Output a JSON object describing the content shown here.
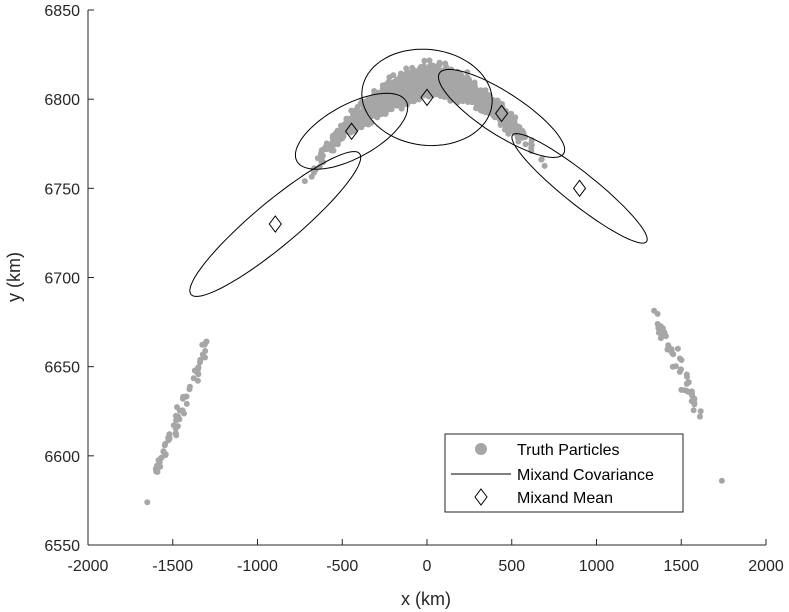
{
  "chart_data": {
    "type": "scatter",
    "xlabel": "x (km)",
    "ylabel": "y (km)",
    "xlim": [
      -2000,
      2000
    ],
    "ylim": [
      6550,
      6850
    ],
    "xticks": [
      -2000,
      -1500,
      -1000,
      -500,
      0,
      500,
      1000,
      1500,
      2000
    ],
    "yticks": [
      6550,
      6600,
      6650,
      6700,
      6750,
      6800,
      6850
    ],
    "grid": false,
    "legend_position": "bottom-right",
    "colors": {
      "particles": "#a6a6a6",
      "lines": "#000000",
      "axes": "#262626"
    },
    "legend": [
      {
        "label": "Truth Particles",
        "marker": "filled-circle"
      },
      {
        "label": "Mixand Covariance",
        "marker": "line"
      },
      {
        "label": "Mixand Mean",
        "marker": "diamond"
      }
    ],
    "particle_arc": {
      "description_points": [
        [
          -1650,
          6575
        ],
        [
          -1600,
          6592
        ],
        [
          -1500,
          6614
        ],
        [
          -1400,
          6638
        ],
        [
          -1300,
          6660
        ],
        [
          -1200,
          6683
        ],
        [
          -1100,
          6700
        ],
        [
          -1000,
          6714
        ],
        [
          -900,
          6730
        ],
        [
          -800,
          6745
        ],
        [
          -700,
          6758
        ],
        [
          -600,
          6770
        ],
        [
          -500,
          6782
        ],
        [
          -400,
          6790
        ],
        [
          -300,
          6797
        ],
        [
          -200,
          6803
        ],
        [
          -100,
          6808
        ],
        [
          0,
          6811
        ],
        [
          100,
          6810
        ],
        [
          200,
          6807
        ],
        [
          300,
          6802
        ],
        [
          400,
          6795
        ],
        [
          500,
          6786
        ],
        [
          600,
          6776
        ],
        [
          700,
          6764
        ],
        [
          800,
          6752
        ],
        [
          900,
          6740
        ],
        [
          1000,
          6726
        ],
        [
          1100,
          6712
        ],
        [
          1200,
          6697
        ],
        [
          1300,
          6685
        ],
        [
          1400,
          6668
        ],
        [
          1500,
          6648
        ],
        [
          1600,
          6625
        ],
        [
          1750,
          6587
        ]
      ],
      "stragglers": [
        [
          -1650,
          6574
        ],
        [
          -1590,
          6591
        ],
        [
          -1520,
          6612
        ],
        [
          -1480,
          6620
        ],
        [
          -1440,
          6632
        ],
        [
          1450,
          6650
        ],
        [
          1500,
          6637
        ],
        [
          1610,
          6622
        ],
        [
          1615,
          6625
        ],
        [
          1740,
          6586
        ],
        [
          1400,
          6669
        ],
        [
          1380,
          6666
        ],
        [
          1480,
          6660
        ]
      ]
    },
    "mixands": [
      {
        "mean": [
          -895,
          6730
        ],
        "cov_semi_axes_km": [
          640,
          20
        ],
        "angle_deg": 38
      },
      {
        "mean": [
          -445,
          6782
        ],
        "cov_semi_axes_km": [
          360,
          18
        ],
        "angle_deg": 23
      },
      {
        "mean": [
          0,
          6801
        ],
        "cov_semi_axes_km": [
          385,
          27
        ],
        "angle_deg": -3
      },
      {
        "mean": [
          440,
          6792
        ],
        "cov_semi_axes_km": [
          430,
          16
        ],
        "angle_deg": -30
      },
      {
        "mean": [
          900,
          6750
        ],
        "cov_semi_axes_km": [
          500,
          14
        ],
        "angle_deg": -37
      }
    ]
  }
}
